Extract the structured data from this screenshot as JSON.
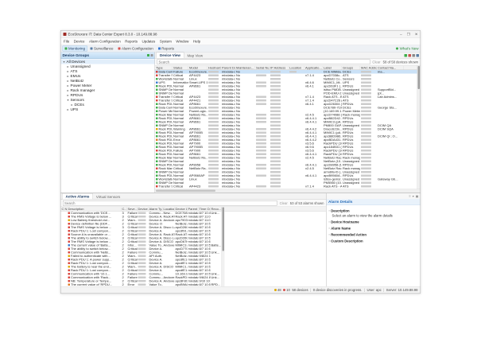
{
  "window": {
    "title": "EcoStruxure IT: Data Center Expert 8.3.0 - 10.149.88.98",
    "controls": [
      {
        "name": "minimize",
        "glyph": "–"
      },
      {
        "name": "maximize",
        "glyph": "❐"
      },
      {
        "name": "close",
        "glyph": "✕"
      }
    ]
  },
  "menu_bar": [
    "File",
    "Device",
    "Alarm Configuration",
    "Reports",
    "Updates",
    "System",
    "Window",
    "Help"
  ],
  "perspective_bar": {
    "tabs": [
      {
        "label": "Monitoring",
        "icon": "monitoring-icon",
        "color": "#3dae49",
        "active": true
      },
      {
        "label": "Surveillance",
        "icon": "surveillance-icon",
        "color": "#5b7fa6",
        "active": false
      },
      {
        "label": "Alarm Configuration",
        "icon": "alarm-configuration-icon",
        "color": "#d9534f",
        "active": false
      },
      {
        "label": "Reports",
        "icon": "reports-icon",
        "color": "#3a7bd2",
        "active": false
      }
    ],
    "whats_new": {
      "label": "What's New"
    }
  },
  "sidebar": {
    "title": "Device Groups",
    "header_icons": [
      {
        "name": "add-group-icon",
        "color": "#3dae49"
      },
      {
        "name": "collapse-all-icon",
        "color": "#9a9a9a"
      }
    ],
    "tree": [
      {
        "label": "All Devices",
        "depth": 0,
        "expander": "open",
        "selected": true
      },
      {
        "label": "Unassigned",
        "depth": 1,
        "expander": "closed",
        "selected": false
      },
      {
        "label": "ATS",
        "depth": 1,
        "expander": "closed",
        "selected": false
      },
      {
        "label": "EMUs",
        "depth": 1,
        "expander": "closed",
        "selected": false
      },
      {
        "label": "NetBotz",
        "depth": 1,
        "expander": "closed",
        "selected": false
      },
      {
        "label": "Power Meter",
        "depth": 1,
        "expander": "closed",
        "selected": false
      },
      {
        "label": "Rack manager",
        "depth": 1,
        "expander": "closed",
        "selected": false
      },
      {
        "label": "RPDUs",
        "depth": 1,
        "expander": "closed",
        "selected": false
      },
      {
        "label": "Sensors",
        "depth": 1,
        "expander": "open",
        "selected": false
      },
      {
        "label": "DCEs",
        "depth": 2,
        "expander": "closed",
        "selected": false
      },
      {
        "label": "UPS",
        "depth": 1,
        "expander": "closed",
        "selected": false
      }
    ]
  },
  "device_view": {
    "tabs": [
      {
        "label": "Device View",
        "active": true
      },
      {
        "label": "Map View",
        "active": false
      }
    ],
    "toolbar_icons": [
      {
        "name": "add-device-icon",
        "color": "#3dae49"
      },
      {
        "name": "remove-device-icon",
        "color": "#c9534f"
      },
      {
        "name": "export-icon",
        "color": "#8a8a8a"
      },
      {
        "name": "column-settings-icon",
        "color": "#5b7fa6"
      }
    ],
    "search_placeholder": "Search",
    "clear_label": "Clear",
    "shown_label": "58 of 58 devices shown",
    "selected_row_index": 0,
    "columns": [
      "Type",
      "Status",
      "Model",
      "Hostname",
      "Parent Device",
      "Maintenan...",
      "Serial Number",
      "IP Address",
      "Location",
      "Applicatio...",
      "Label",
      "Groups",
      "MAC Addre...",
      "Contact Na..."
    ],
    "rows": [
      [
        "Data Cente...",
        "Failure",
        "EcoStruxure...",
        "▓",
        "mixdata-d3...",
        "No",
        "",
        "▓",
        "▓",
        "",
        "DCE MiMda...",
        "DCEs",
        "▓",
        "ma..."
      ],
      [
        "Transfer Swi...",
        "Critical",
        "AP4423",
        "▓",
        "mixdata-d3...",
        "No",
        "▓",
        "▓",
        "",
        "v7.1.4",
        "apcD7038c...",
        "ATS",
        "▓",
        ""
      ],
      [
        "Workstation",
        "Normal",
        "Linux",
        "▓",
        "mixdata-d3...",
        "No",
        "",
        "▓",
        "",
        "",
        "NetBotz Co...",
        "Sensors",
        "▓",
        ""
      ],
      [
        "UPS",
        "Informational",
        "Smart-UPS 1...",
        "▓",
        "mixdata-d3...",
        "No",
        "▓",
        "▓",
        "",
        "v6.4.6",
        "MIMIC1_Mi...",
        "UPS",
        "▓",
        ""
      ],
      [
        "Rack PDU",
        "Normal",
        "AP8661",
        "▓",
        "mixdata-d3...",
        "No",
        "▓",
        "▓",
        "",
        "v6.4.1",
        "apcD63F1 (...",
        "RPDUs",
        "▓",
        ""
      ],
      [
        "SNMP Devi...",
        "Normal",
        "",
        "▓",
        "mixdata-d3...",
        "No",
        "",
        "▓",
        "",
        "",
        "istiso PMDB...",
        "Unassigned",
        "▓",
        "SupportBld..."
      ],
      [
        "SNMP Devi...",
        "Normal",
        "",
        "▓",
        "mixdata-d3...",
        "No",
        "",
        "▓",
        "",
        "",
        "POD-EMU-2...",
        "Unassigned",
        "▓",
        "(pt..."
      ],
      [
        "Transfer Swi...",
        "Critical",
        "AP4423",
        "▓",
        "mixdata-d3...",
        "No",
        "▓",
        "▓",
        "",
        "v7.1.4",
        "Rack ATS - B...",
        "ATS",
        "▓",
        "Lab Admins..."
      ],
      [
        "Transfer Swi...",
        "Critical",
        "AP4421",
        "▓",
        "mixdata-d3...",
        "No",
        "▓",
        "▓",
        "",
        "v7.1.4",
        "apcD47C26 (...",
        "ATS",
        "▓",
        ""
      ],
      [
        "Rack PDU",
        "Normal",
        "AP8661",
        "▓",
        "mixdata-d3...",
        "No",
        "▓",
        "▓",
        "",
        "v6.4.1",
        "apcD26304 (...",
        "RPDUs",
        "▓",
        ""
      ],
      [
        "Data Cente...",
        "Normal",
        "EcoStruxure...",
        "▓",
        "mixdata-d3...",
        "No",
        "",
        "▓",
        "",
        "",
        "DCE780-710...",
        "DCEs",
        "▓",
        "George Sta..."
      ],
      [
        "Power Mete...",
        "Normal",
        "PowerLogic...",
        "▓",
        "mixdata-d3...",
        "No",
        "",
        "▓",
        "",
        "",
        "(10.169.99.1...",
        "Power Meter",
        "▓",
        ""
      ],
      [
        "Rack Mana...",
        "Normal",
        "NetBotz Ra...",
        "▓",
        "mixdata-d3...",
        "No",
        "▓",
        "▓",
        "",
        "v2.4.5",
        "apcD74088 (...",
        "Rack manager",
        "▓",
        ""
      ],
      [
        "Rack PDU",
        "Normal",
        "AP8661",
        "▓",
        "mixdata-d3...",
        "No",
        "▓",
        "▓",
        "",
        "v6.4.4.1",
        "apcB82D42...",
        "RPDUs",
        "▓",
        ""
      ],
      [
        "Rack PDU",
        "Normal",
        "AP8661",
        "▓",
        "mixdata-d3...",
        "No",
        "▓",
        "▓",
        "",
        "v6.4.4.1",
        "MIMIC3 (pA...",
        "RPDUs",
        "▓",
        ""
      ],
      [
        "SNMP Devi...",
        "Normal",
        "",
        "▓",
        "mixdata-d3...",
        "No",
        "",
        "▓",
        "",
        "",
        "PM800 GAP...",
        "Unassigned",
        "▓",
        "DCIM QA"
      ],
      [
        "Rack PDU",
        "Warning",
        "AP8661",
        "▓",
        "mixdata-d3...",
        "No",
        "▓",
        "▓",
        "",
        "v6.4.4.2",
        "DracoS23n...",
        "RPDUs",
        "▓",
        "DCIM SQA"
      ],
      [
        "Rack PDU",
        "Normal",
        "AP7900B",
        "▓",
        "mixdata-d3...",
        "No",
        "▓",
        "▓",
        "",
        "v6.4.4.1",
        "MIMIC1 (pA...",
        "RPDUs",
        "▓",
        ""
      ],
      [
        "Rack PDU",
        "Normal",
        "AP8661",
        "▓",
        "mixdata-d3...",
        "No",
        "▓",
        "▓",
        "",
        "v6.4.4.1",
        "apcB8D9B6...",
        "RPDUs",
        "▓",
        "DCIM Qi ; O..."
      ],
      [
        "Rack PDU",
        "Error",
        "AP8661",
        "▓",
        "mixdata-d3...",
        "No",
        "▓",
        "▓",
        "",
        "v6.4.4.2",
        "apcBDA431...",
        "RPDUs",
        "▓",
        ""
      ],
      [
        "Rack PDU",
        "Normal",
        "AP7900",
        "▓",
        "mixdata-d3...",
        "No",
        "▓",
        "▓",
        "",
        "v3.5.6",
        "RackPDU (10...",
        "RPDUs",
        "▓",
        ""
      ],
      [
        "Rack PDU",
        "Normal",
        "AP7900B",
        "▓",
        "mixdata-d3...",
        "No",
        "▓",
        "▓",
        "",
        "v6.9.6",
        "apc184B31 (...",
        "RPDUs",
        "▓",
        ""
      ],
      [
        "Rack PDU",
        "Failure",
        "AP7900",
        "▓",
        "mixdata-d3...",
        "No",
        "▓",
        "▓",
        "",
        "v3.5.6",
        "RackPDU (10...",
        "RPDUs",
        "▓",
        ""
      ],
      [
        "Rack PDU",
        "Normal",
        "AP8661",
        "▓",
        "mixdata-d3...",
        "No",
        "▓",
        "▓",
        "",
        "v6.4.4.1",
        "RackPDU (10...",
        "RPDUs",
        "▓",
        ""
      ],
      [
        "Rack Mana...",
        "Normal",
        "NetBotz Ra...",
        "▓",
        "mixdata-d3...",
        "No",
        "▓",
        "▓",
        "",
        "v2.4.5",
        "NetBotz Rac...",
        "Rack manager",
        "▓",
        ""
      ],
      [
        "SNMP Devi...",
        "Normal",
        "",
        "▓",
        "mixdata-d3...",
        "No",
        "",
        "▓",
        "",
        "",
        "NetBotz (10...",
        "Unassigned",
        "▓",
        ""
      ],
      [
        "Rack PDU",
        "Normal",
        "AP8958",
        "▓",
        "mixdata-d3...",
        "No",
        "▓",
        "▓",
        "",
        "v6.4.4.1",
        "apcD8958 (1...",
        "RPDUs",
        "▓",
        ""
      ],
      [
        "Rack Mana...",
        "Critical",
        "NetBotz Ra...",
        "▓",
        "mixdata-d3...",
        "No",
        "▓",
        "▓",
        "",
        "v2.4.5",
        "NetBotz Rac...",
        "Rack manager",
        "▓",
        ""
      ],
      [
        "SNMP Devi...",
        "Normal",
        "",
        "▓",
        "mixdata-d3...",
        "No",
        "",
        "▓",
        "",
        "",
        "armdillo-tb (...",
        "Unassigned",
        "▓",
        ""
      ],
      [
        "Rack PDU",
        "Normal",
        "AP9560AP",
        "▓",
        "mixdata-d3...",
        "No",
        "▓",
        "▓",
        "",
        "v6.4.4.1",
        "apcB9560A...",
        "RPDUs",
        "▓",
        ""
      ],
      [
        "Workstation",
        "Normal",
        "Linux",
        "▓",
        "mixdata-d3...",
        "No",
        "",
        "▓",
        "",
        "",
        "istiso-gemsr...",
        "Unassigned",
        "▓",
        "Gateway Gb..."
      ],
      [
        "SNMP Devi...",
        "Normal",
        "",
        "▓",
        "mixdata-d3...",
        "No",
        "",
        "▓",
        "",
        "",
        "PM5560 (10...",
        "Unassigned",
        "▓",
        ""
      ],
      [
        "Transfer Swi...",
        "Critical",
        "AP4423",
        "▓",
        "mixdata-d3...",
        "No",
        "▓",
        "▓",
        "",
        "v7.1.4",
        "Rack ATS - A...",
        "ATS",
        "▓",
        ""
      ],
      [
        "Rack PDU",
        "Normal",
        "AP8661",
        "▓",
        "mixdata-d3...",
        "No",
        "▓",
        "▓",
        "",
        "v6.4.4.1",
        "apcD2630c...",
        "RPDUs",
        "▓",
        ""
      ]
    ]
  },
  "alarm_panel": {
    "tabs": [
      {
        "label": "Active Alarms",
        "active": true
      },
      {
        "label": "Virtual Sensors",
        "active": false
      }
    ],
    "search_placeholder": "Search",
    "clear_label": "Clear",
    "shown_label": "53 of 53 alarms shown",
    "columns": [
      "C...",
      "N...",
      "Description",
      "C...",
      "Seve...",
      "Device H...",
      "Alarm Ty...",
      "Location",
      "Device L...",
      "Parent D...",
      "Time Oc...",
      "Reco..."
    ],
    "rows": [
      [
        "",
        "",
        "Communication with 'DCE...",
        "3",
        "Failure",
        "▓",
        "Commu...",
        "New...",
        "DCE7084...",
        "mixdata-...",
        "8/7 10:4...",
        "Unk..."
      ],
      [
        "",
        "",
        "The RMS Voltage is below ...",
        "3",
        "Critical",
        "▓",
        "Device A...",
        "Rack ATS...",
        "Rack ATS...",
        "mixdata-...",
        "8/7 11:0...",
        ""
      ],
      [
        "",
        "",
        "Low Battery threshold viol...",
        "2",
        "Warn...",
        "▓",
        "Device A...",
        "Andover...",
        "apc7903...",
        "mixdata-...",
        "8/7 11:0...",
        ""
      ],
      [
        "",
        "",
        "Device definition file (DDF...",
        "2",
        "Critical",
        "▓",
        "Device O...",
        "",
        "NetBotz...",
        "mixdata-...",
        "8/7 10:5...",
        ""
      ],
      [
        "",
        "",
        "The RMS Voltage is below ...",
        "3",
        "Critical",
        "▓",
        "Device A...",
        "Disco La...",
        "apcD260...",
        "mixdata-...",
        "8/7 10:5...",
        ""
      ],
      [
        "",
        "",
        "Rack PDU 1: Lost compon...",
        "2",
        "Critical",
        "▓",
        "Device A...",
        "",
        "apcdf91...",
        "mixdata-...",
        "8/7 10:5...",
        ""
      ],
      [
        "",
        "",
        "Source A is unavailable or ...",
        "2",
        "Critical",
        "▓",
        "Device A...",
        "Rack ATS...",
        "Rack ATS...",
        "mixdata-...",
        "8/7 10:5...",
        ""
      ],
      [
        "",
        "",
        "The ability to switch below...",
        "3",
        "Critical",
        "▓",
        "Device A...",
        "Disco La...",
        "apcD260...",
        "mixdata-...",
        "8/7 10:5...",
        ""
      ],
      [
        "",
        "",
        "The RMS Voltage is below ...",
        "2",
        "Critical",
        "▓",
        "Device A...",
        "DISCO IN...",
        "apcD67K...",
        "mixdata-...",
        "8/7 10:5...",
        ""
      ],
      [
        "",
        "",
        "The current value of 'Batte...",
        "2",
        "Infor...",
        "▓",
        "Value To...",
        "Andover...",
        "MIMIC3...",
        "mixdata-...",
        "8/7 10:5...",
        "Batte..."
      ],
      [
        "",
        "",
        "The ability to switch below...",
        "2",
        "Critical",
        "▓",
        "Device A...",
        "",
        "apcD770...",
        "mixdata-...",
        "8/7 10:5...",
        ""
      ],
      [
        "",
        "",
        "Communication with 'NetB...",
        "2",
        "Failure",
        "▓",
        "Commu...",
        "",
        "NetBotz...",
        "mixdata-...",
        "8/7 10:5...",
        "Unk..."
      ],
      [
        "",
        "",
        "Failed to authenticate with...",
        "2",
        "Warn...",
        "▓",
        "API Auth...",
        "",
        "NetBotz...",
        "mixdata-...",
        "9/8/24 1:...",
        ""
      ],
      [
        "",
        "",
        "Rack PDU 1: A power supp...",
        "2",
        "Critical",
        "▓",
        "Device A...",
        "",
        "apcdfE1...",
        "mixdata-...",
        "8/7 10:5...",
        ""
      ],
      [
        "",
        "",
        "Rack PDU 1: Lost compon...",
        "2",
        "Critical",
        "▓",
        "Device A...",
        "",
        "apcdfE1...",
        "mixdata-...",
        "8/7 10:5...",
        ""
      ],
      [
        "",
        "",
        "The battery is near the end...",
        "2",
        "Warn...",
        "▓",
        "Device A...",
        "DISCO IN...",
        "MIMIC1...",
        "mixdata-...",
        "8/7 10:5...",
        ""
      ],
      [
        "",
        "",
        "Rack PDU 1: Lost compon...",
        "2",
        "Critical",
        "▓",
        "Device A...",
        "",
        "apcdfE1...",
        "mixdata-...",
        "8/7 10:5...",
        ""
      ],
      [
        "",
        "",
        "Communication with '10.1...",
        "2",
        "Failure",
        "▓",
        "Commu...",
        "",
        "10.169.9...",
        "mixdata-...",
        "8/7 10:5...",
        "Unk..."
      ],
      [
        "",
        "",
        "Communication with 'Rack...",
        "2",
        "Failure",
        "▓",
        "Commu...",
        "Andover...",
        "RackPDU...",
        "mixdata-...",
        "9/6/24 8:...",
        "Unk..."
      ],
      [
        "",
        "",
        "NB: Temperature or Tempe...",
        "2",
        "Critical",
        "▓",
        "Device A...",
        "Andover...",
        "apc8F80...",
        "mixdata-...",
        "9/10 10:...",
        ""
      ],
      [
        "",
        "",
        "The current value of 'RPDU...",
        "2",
        "Error",
        "▓",
        "Value To...",
        "",
        "apcB9A6...",
        "mixdata-...",
        "8/7 10:5...",
        "RPD..."
      ]
    ]
  },
  "alarm_details": {
    "title": "Alarm Details",
    "placeholder": "Select an alarm to view the alarm details",
    "fields": [
      "Description",
      "Device Hostname",
      "Alarm Name",
      "Recommended Action",
      "Custom Description"
    ],
    "panel_icons": [
      {
        "name": "panel-menu-icon",
        "glyph": "≡"
      },
      {
        "name": "minimize-panel-icon",
        "glyph": "▾"
      },
      {
        "name": "maximize-panel-icon",
        "glyph": "▣"
      }
    ]
  },
  "status_bar": {
    "badges": [
      {
        "name": "warning-count",
        "count": "48",
        "color": "#e0a800"
      },
      {
        "name": "critical-count",
        "count": "10",
        "color": "#d9534f"
      }
    ],
    "devices": "58 devices",
    "discoveries": "0 device discoveries in progress.",
    "user": "User: apc",
    "server": "Server: 10.149.88.98"
  },
  "colors": {
    "selection": "#cbe2f7",
    "severity": {
      "Normal": "#3dae49",
      "Critical": "#d9433b",
      "Failure": "#d9433b",
      "Warning": "#e0a800",
      "Warn...": "#e0a800",
      "Error": "#e07820",
      "Informational": "#3a7bd2",
      "Infor...": "#3a7bd2"
    }
  }
}
